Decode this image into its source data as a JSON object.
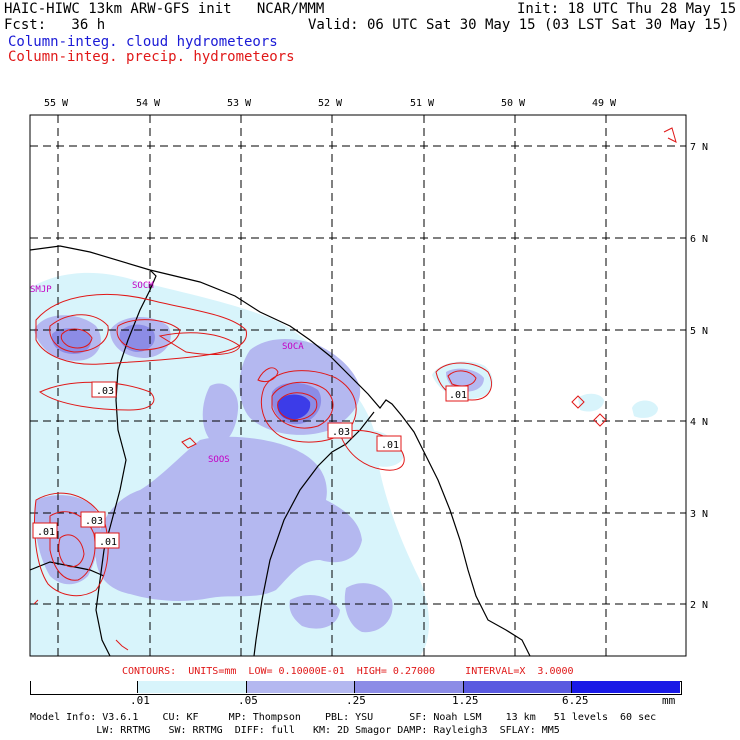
{
  "header": {
    "model_line": "HAIC-HIWC 13km ARW-GFS init   NCAR/MMM",
    "init_line": "Init: 18 UTC Thu 28 May 15",
    "fcst_line": "Fcst:   36 h",
    "valid_line": "Valid: 06 UTC Sat 30 May 15 (03 LST Sat 30 May 15)",
    "field1": "Column-integ. cloud hydrometeors",
    "field2": "Column-integ. precip. hydrometeors"
  },
  "map": {
    "lon_labels": [
      "55 W",
      "54 W",
      "53 W",
      "52 W",
      "51 W",
      "50 W",
      "49 W"
    ],
    "lat_labels": [
      "7 N",
      "6 N",
      "5 N",
      "4 N",
      "3 N",
      "2 N"
    ],
    "stations": [
      "SMJP",
      "SOCM",
      "SOCA",
      "SOOS"
    ],
    "contour_labels": [
      ".03",
      ".01",
      ".03",
      ".01",
      ".03",
      ".01",
      ".01"
    ],
    "colors": {
      "cloud_blue": "#1a1ad6",
      "precip_red": "#e01818",
      "station_magenta": "#c400c4",
      "fill_1": "#d8f4fb",
      "fill_2": "#b4b8f0",
      "fill_3": "#8c8ce6",
      "fill_4": "#5a5ae0",
      "fill_5": "#3c3ce8",
      "fill_6": "#1a1ae6"
    }
  },
  "contour_info": "CONTOURS:  UNITS=mm  LOW= 0.10000E-01  HIGH= 0.27000     INTERVAL=X  3.0000",
  "colorbar": {
    "labels": [
      ".01",
      ".05",
      ".25",
      "1.25",
      "6.25"
    ],
    "units": "mm"
  },
  "footer": {
    "line1": "Model Info: V3.6.1    CU: KF     MP: Thompson    PBL: YSU      SF: Noah LSM    13 km   51 levels  60 sec",
    "line2": "           LW: RRTMG   SW: RRTMG  DIFF: full   KM: 2D Smagor DAMP: Rayleigh3  SFLAY: MM5"
  }
}
